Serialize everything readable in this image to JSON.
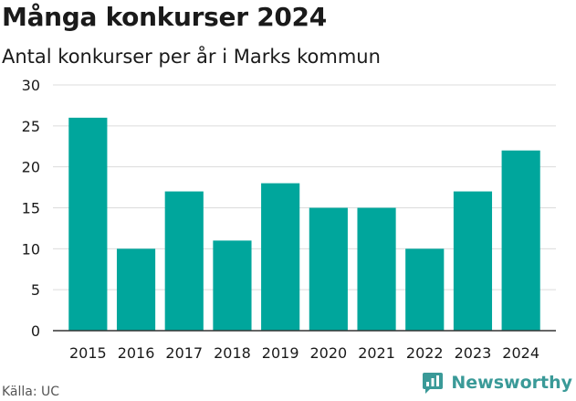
{
  "header": {
    "title": "Många konkurser 2024",
    "subtitle": "Antal konkurser per år i Marks kommun"
  },
  "footer": {
    "source": "Källa: UC",
    "brand": "Newsworthy",
    "brand_icon": "newsworthy-logo-icon"
  },
  "colors": {
    "bar": "#00a69c",
    "grid": "#dcdcdc",
    "axis": "#333333",
    "brand": "#3a9a98"
  },
  "chart_data": {
    "type": "bar",
    "title": "Många konkurser 2024",
    "subtitle": "Antal konkurser per år i Marks kommun",
    "categories": [
      "2015",
      "2016",
      "2017",
      "2018",
      "2019",
      "2020",
      "2021",
      "2022",
      "2023",
      "2024"
    ],
    "values": [
      26,
      10,
      17,
      11,
      18,
      15,
      15,
      10,
      17,
      22
    ],
    "xlabel": "",
    "ylabel": "",
    "ylim": [
      0,
      30
    ],
    "yticks": [
      0,
      5,
      10,
      15,
      20,
      25,
      30
    ],
    "grid": true,
    "legend": "none"
  }
}
